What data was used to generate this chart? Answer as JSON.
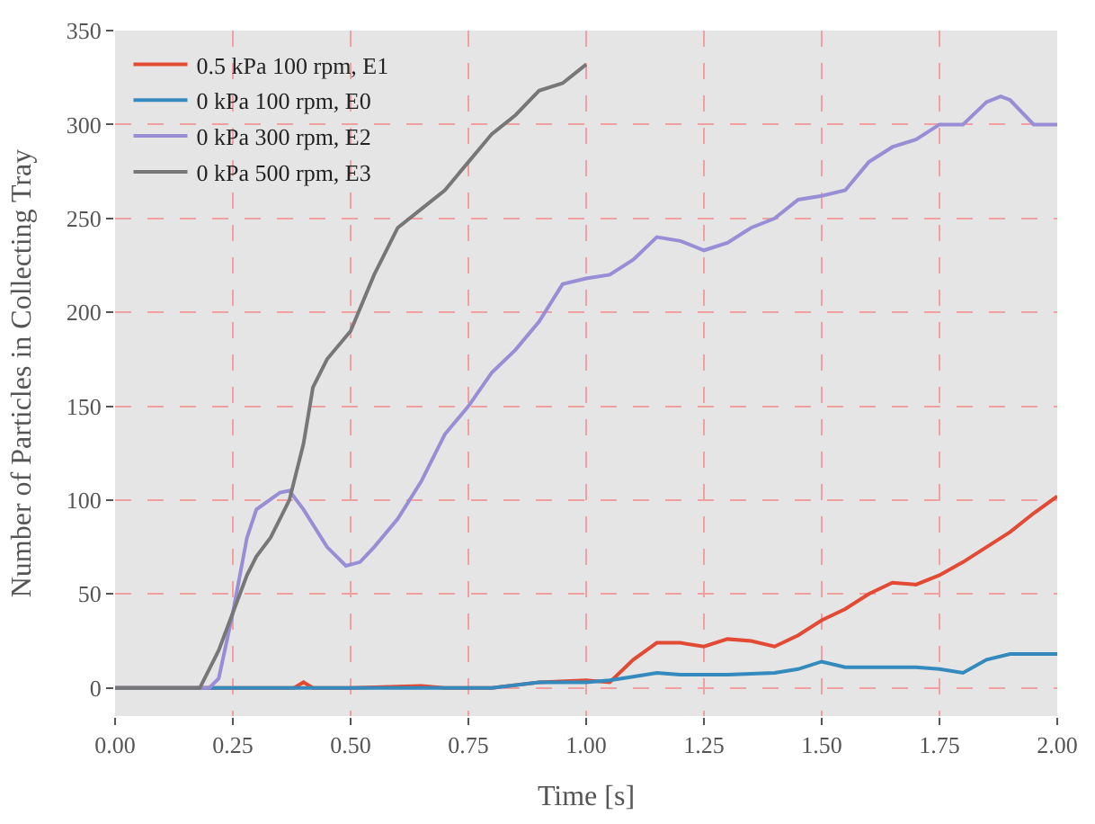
{
  "chart_data": {
    "type": "line",
    "xlabel": "Time [s]",
    "ylabel": "Number of Particles in Collecting Tray",
    "xlim": [
      0,
      2
    ],
    "xticks": [
      {
        "value": 0,
        "label": "0.00"
      },
      {
        "value": 0.25,
        "label": "0.25"
      },
      {
        "value": 0.5,
        "label": "0.50"
      },
      {
        "value": 0.75,
        "label": "0.75"
      },
      {
        "value": 1,
        "label": "1.00"
      },
      {
        "value": 1.25,
        "label": "1.25"
      },
      {
        "value": 1.5,
        "label": "1.50"
      },
      {
        "value": 1.75,
        "label": "1.75"
      },
      {
        "value": 2,
        "label": "2.00"
      }
    ],
    "ylim": [
      -15,
      350
    ],
    "yticks": [
      0,
      50,
      100,
      150,
      200,
      250,
      300,
      350
    ],
    "grid": true,
    "legend": "top left",
    "line_style": "solid",
    "marker": "none",
    "series": [
      {
        "name": "0.5 kPa 100 rpm, E1",
        "color": "#e24a33",
        "x": [
          0,
          0.38,
          0.4,
          0.42,
          0.5,
          0.65,
          0.7,
          0.8,
          0.9,
          1.0,
          1.05,
          1.1,
          1.15,
          1.2,
          1.25,
          1.3,
          1.35,
          1.4,
          1.45,
          1.5,
          1.55,
          1.6,
          1.65,
          1.7,
          1.75,
          1.8,
          1.85,
          1.9,
          1.95,
          2.0
        ],
        "values": [
          0,
          0,
          3,
          0,
          0,
          1,
          0,
          0,
          3,
          4,
          3,
          15,
          24,
          24,
          22,
          26,
          25,
          22,
          28,
          36,
          42,
          50,
          56,
          55,
          60,
          67,
          75,
          83,
          93,
          102
        ]
      },
      {
        "name": "0 kPa 100 rpm, E0",
        "color": "#348abd",
        "x": [
          0,
          0.8,
          0.9,
          1.0,
          1.05,
          1.1,
          1.15,
          1.2,
          1.3,
          1.4,
          1.45,
          1.5,
          1.55,
          1.6,
          1.7,
          1.75,
          1.8,
          1.85,
          1.9,
          1.95,
          2.0
        ],
        "values": [
          0,
          0,
          3,
          3,
          4,
          6,
          8,
          7,
          7,
          8,
          10,
          14,
          11,
          11,
          11,
          10,
          8,
          15,
          18,
          18,
          18
        ]
      },
      {
        "name": "0 kPa 300 rpm, E2",
        "color": "#988ed5",
        "x": [
          0,
          0.2,
          0.22,
          0.25,
          0.28,
          0.3,
          0.35,
          0.37,
          0.4,
          0.45,
          0.49,
          0.52,
          0.55,
          0.6,
          0.65,
          0.7,
          0.75,
          0.8,
          0.85,
          0.9,
          0.95,
          1.0,
          1.05,
          1.1,
          1.15,
          1.2,
          1.25,
          1.3,
          1.35,
          1.4,
          1.45,
          1.5,
          1.55,
          1.6,
          1.65,
          1.7,
          1.75,
          1.8,
          1.85,
          1.88,
          1.9,
          1.95,
          2.0
        ],
        "values": [
          0,
          0,
          5,
          40,
          80,
          95,
          104,
          105,
          95,
          75,
          65,
          67,
          75,
          90,
          110,
          135,
          150,
          168,
          180,
          195,
          215,
          218,
          220,
          228,
          240,
          238,
          233,
          237,
          245,
          250,
          260,
          262,
          265,
          280,
          288,
          292,
          300,
          300,
          312,
          315,
          313,
          300,
          300
        ]
      },
      {
        "name": "0 kPa 500 rpm, E3",
        "color": "#777777",
        "x": [
          0,
          0.18,
          0.2,
          0.22,
          0.25,
          0.28,
          0.3,
          0.33,
          0.35,
          0.37,
          0.4,
          0.42,
          0.45,
          0.5,
          0.55,
          0.6,
          0.65,
          0.7,
          0.75,
          0.8,
          0.85,
          0.9,
          0.95,
          1.0
        ],
        "values": [
          0,
          0,
          10,
          20,
          40,
          60,
          70,
          80,
          90,
          100,
          130,
          160,
          175,
          190,
          220,
          245,
          255,
          265,
          280,
          295,
          305,
          318,
          322,
          332
        ]
      }
    ]
  }
}
